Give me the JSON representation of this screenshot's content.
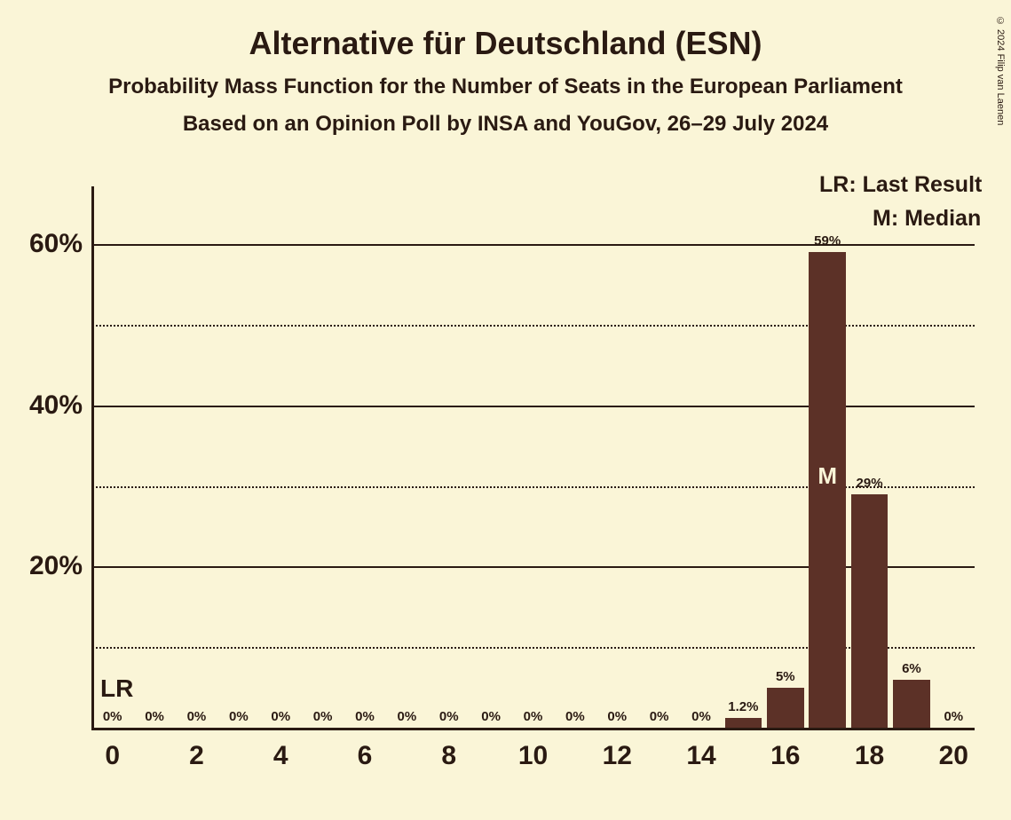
{
  "titles": {
    "main": "Alternative für Deutschland (ESN)",
    "sub1": "Probability Mass Function for the Number of Seats in the European Parliament",
    "sub2": "Based on an Opinion Poll by INSA and YouGov, 26–29 July 2024"
  },
  "legend": {
    "lr": "LR: Last Result",
    "median": "M: Median",
    "lr_short": "LR",
    "m_short": "M"
  },
  "copyright": "© 2024 Filip van Laenen",
  "chart": {
    "type": "bar",
    "background_color": "#faf5d7",
    "bar_color": "#5c3127",
    "text_color": "#2a1a12",
    "grid_color": "#2a1a12",
    "bar_width": 0.88,
    "ylim": [
      0,
      65
    ],
    "xlim": [
      0,
      20
    ],
    "y_ticks_major": [
      20,
      40,
      60
    ],
    "y_ticks_minor": [
      10,
      30,
      50
    ],
    "x_ticks": [
      0,
      2,
      4,
      6,
      8,
      10,
      12,
      14,
      16,
      18,
      20
    ],
    "lr_position": 0,
    "median_position": 17,
    "data": [
      {
        "x": 0,
        "value": 0,
        "label": "0%"
      },
      {
        "x": 1,
        "value": 0,
        "label": "0%"
      },
      {
        "x": 2,
        "value": 0,
        "label": "0%"
      },
      {
        "x": 3,
        "value": 0,
        "label": "0%"
      },
      {
        "x": 4,
        "value": 0,
        "label": "0%"
      },
      {
        "x": 5,
        "value": 0,
        "label": "0%"
      },
      {
        "x": 6,
        "value": 0,
        "label": "0%"
      },
      {
        "x": 7,
        "value": 0,
        "label": "0%"
      },
      {
        "x": 8,
        "value": 0,
        "label": "0%"
      },
      {
        "x": 9,
        "value": 0,
        "label": "0%"
      },
      {
        "x": 10,
        "value": 0,
        "label": "0%"
      },
      {
        "x": 11,
        "value": 0,
        "label": "0%"
      },
      {
        "x": 12,
        "value": 0,
        "label": "0%"
      },
      {
        "x": 13,
        "value": 0,
        "label": "0%"
      },
      {
        "x": 14,
        "value": 0,
        "label": "0%"
      },
      {
        "x": 15,
        "value": 1.2,
        "label": "1.2%"
      },
      {
        "x": 16,
        "value": 5,
        "label": "5%"
      },
      {
        "x": 17,
        "value": 59,
        "label": "59%"
      },
      {
        "x": 18,
        "value": 29,
        "label": "29%"
      },
      {
        "x": 19,
        "value": 6,
        "label": "6%"
      },
      {
        "x": 20,
        "value": 0,
        "label": "0%"
      }
    ]
  }
}
